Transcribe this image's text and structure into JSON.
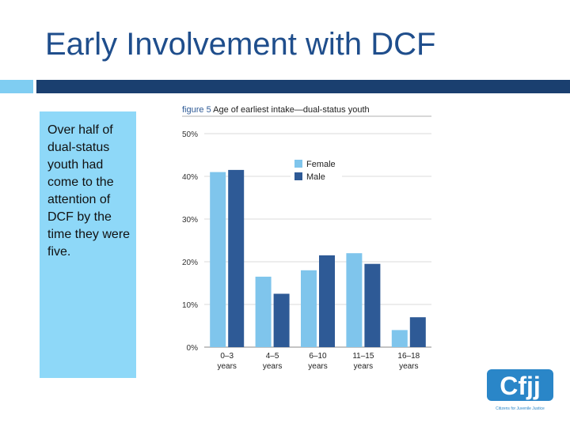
{
  "slide": {
    "title": "Early Involvement with DCF",
    "body_text": "Over half of dual-status youth had come to the attention of DCF by the time they were five."
  },
  "chart_data": {
    "type": "bar",
    "figure_label": "figure 5",
    "title": "Age of earliest intake—dual-status youth",
    "categories": [
      [
        "0–3",
        "years"
      ],
      [
        "4–5",
        "years"
      ],
      [
        "6–10",
        "years"
      ],
      [
        "11–15",
        "years"
      ],
      [
        "16–18",
        "years"
      ]
    ],
    "series": [
      {
        "name": "Female",
        "color": "#7fc5ec",
        "values": [
          41,
          16.5,
          18,
          22,
          4
        ]
      },
      {
        "name": "Male",
        "color": "#2e5a96",
        "values": [
          41.5,
          12.5,
          21.5,
          19.5,
          7
        ]
      }
    ],
    "ylim": [
      0,
      50
    ],
    "yticks": [
      0,
      10,
      20,
      30,
      40,
      50
    ],
    "ytick_labels": [
      "0%",
      "10%",
      "20%",
      "30%",
      "40%",
      "50%"
    ],
    "grid": true,
    "legend_position": "top-right"
  },
  "logo": {
    "text": "Cfjj",
    "subtext": "Citizens for Juvenile Justice",
    "color": "#2a86c8"
  }
}
